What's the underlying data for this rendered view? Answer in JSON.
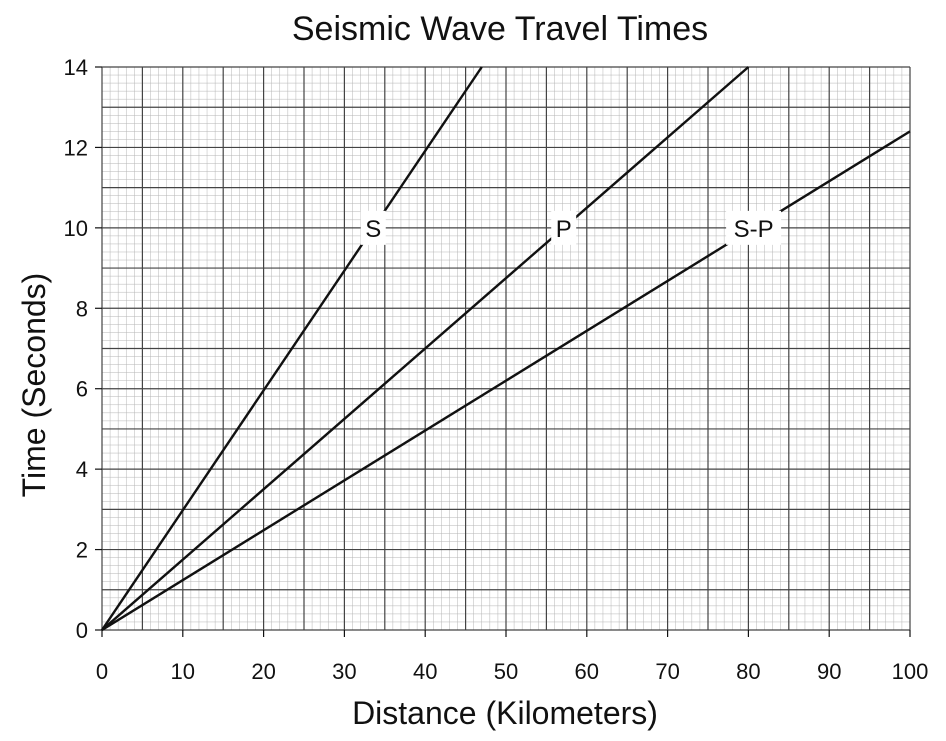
{
  "chart_data": {
    "type": "line",
    "title": "Seismic Wave Travel Times",
    "xlabel": "Distance (Kilometers)",
    "ylabel": "Time (Seconds)",
    "xlim": [
      0,
      100
    ],
    "ylim": [
      0,
      14
    ],
    "x_ticks": [
      "0",
      "10",
      "20",
      "30",
      "40",
      "50",
      "60",
      "70",
      "80",
      "90",
      "100"
    ],
    "y_ticks": [
      "0",
      "2",
      "4",
      "6",
      "8",
      "10",
      "12",
      "14"
    ],
    "grid": true,
    "legend": "none",
    "series": [
      {
        "name": "S",
        "x": [
          0,
          47
        ],
        "y": [
          0,
          14
        ]
      },
      {
        "name": "P",
        "x": [
          0,
          80
        ],
        "y": [
          0,
          14
        ]
      },
      {
        "name": "S-P",
        "x": [
          0,
          100
        ],
        "y": [
          0,
          12.4
        ]
      }
    ],
    "colors": {
      "line": "#111111",
      "major_grid": "#444444",
      "minor_grid": "#b5b5b5"
    }
  }
}
